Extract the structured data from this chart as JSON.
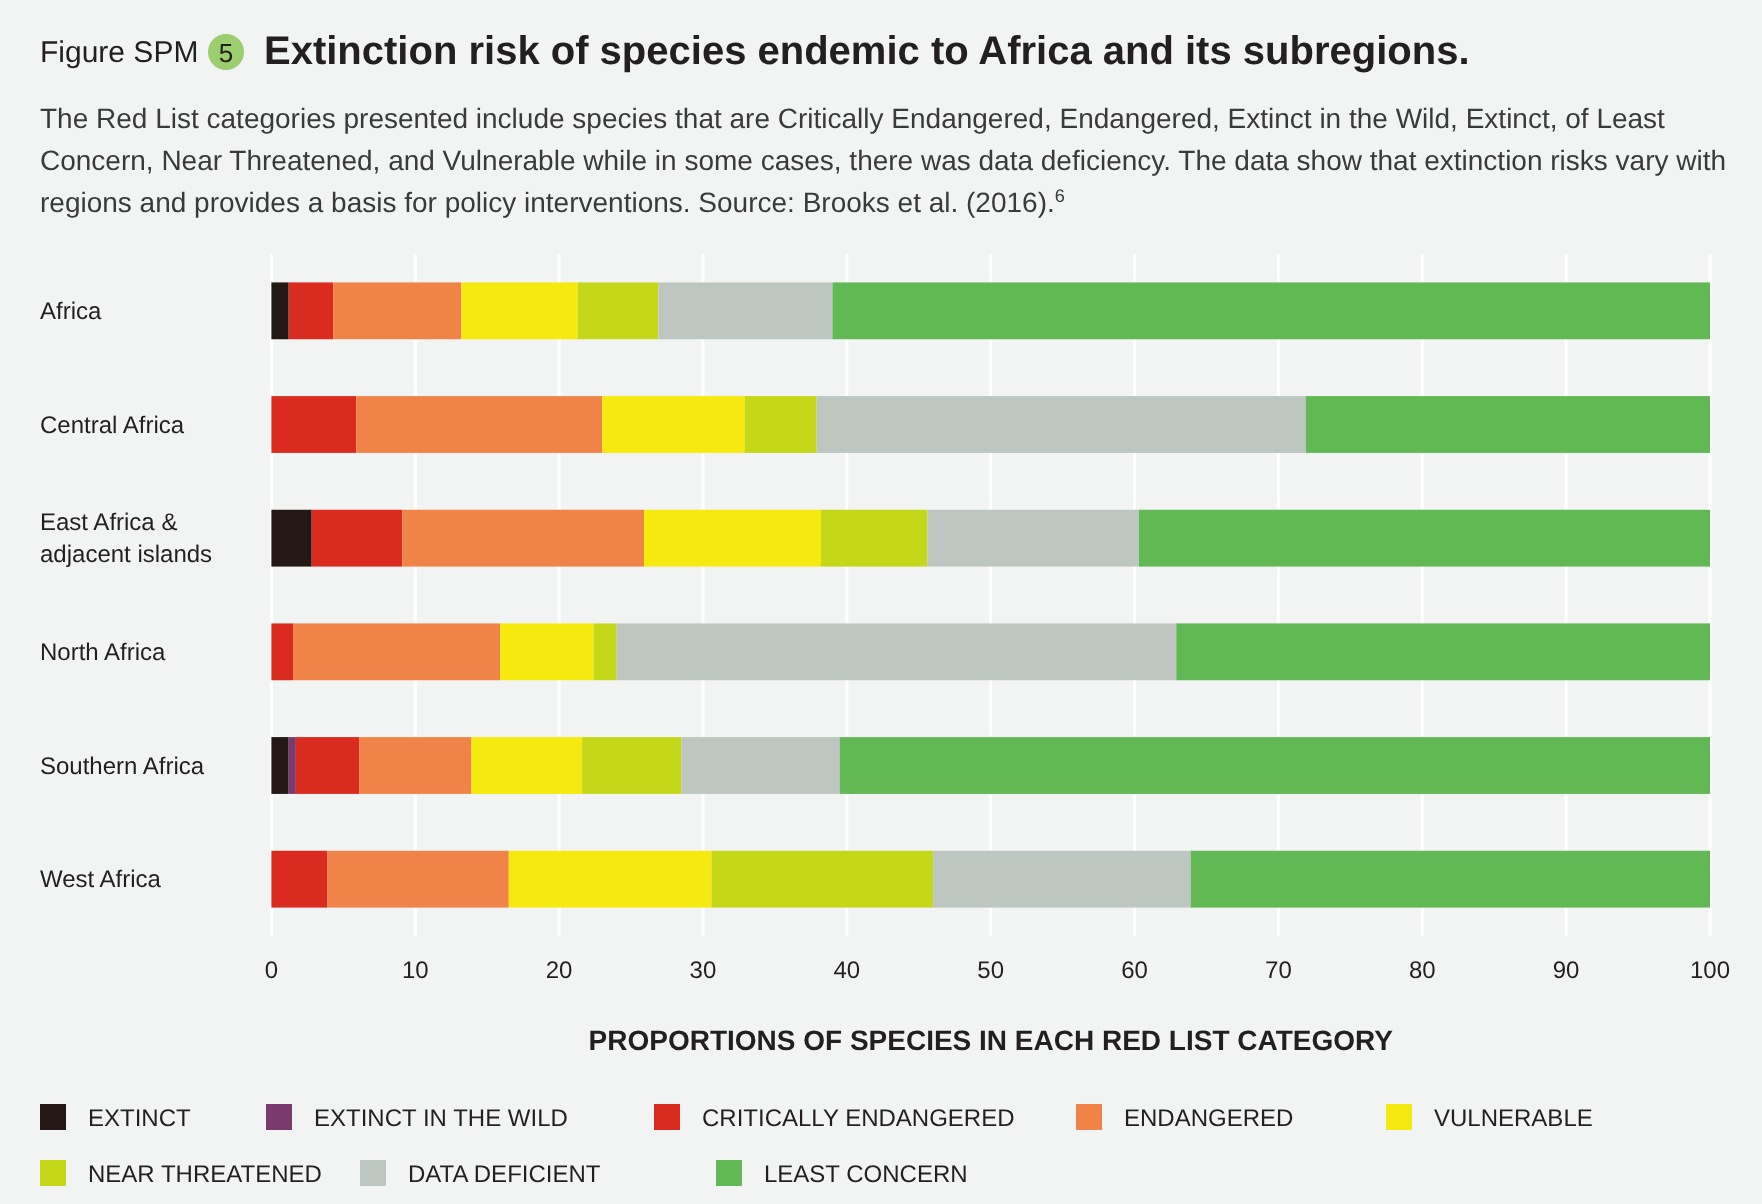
{
  "chart_data": {
    "type": "bar",
    "orientation": "horizontal",
    "stacked": true,
    "title": "Extinction risk of species endemic to Africa and its subregions.",
    "subtitle": "The Red List categories presented include species that are Critically Endangered, Endangered, Extinct in the Wild, Extinct, of Least Concern, Near Threatened, and Vulnerable while in some cases, there was data deficiency. The data show that extinction risks vary with regions and provides a basis for policy interventions. Source: Brooks et al. (2016).$^{6}$",
    "annotations": [
      "Figure SPM",
      "5"
    ],
    "xlabel": "PROPORTIONS OF SPECIES IN EACH RED LIST CATEGORY",
    "categories": [
      "Africa",
      "Central Africa",
      "East Africa & adjacent islands",
      "North Africa",
      "Southern Africa",
      "West Africa"
    ],
    "series": [
      {
        "name": "EXTINCT",
        "color": "#231816",
        "values": [
          1.2,
          0,
          2.8,
          0,
          1.2,
          0
        ]
      },
      {
        "name": "EXTINCT IN THE WILD",
        "color": "#7b3a6e",
        "values": [
          0,
          0,
          0,
          0,
          0.5,
          0
        ]
      },
      {
        "name": "CRITICALLY ENDANGERED",
        "color": "#d92b20",
        "values": [
          3.1,
          5.9,
          6.3,
          1.5,
          4.4,
          3.9
        ]
      },
      {
        "name": "ENDANGERED",
        "color": "#f08347",
        "values": [
          8.9,
          17.1,
          16.8,
          14.4,
          7.8,
          12.6
        ]
      },
      {
        "name": "VULNERABLE",
        "color": "#f5e90f",
        "values": [
          8.1,
          9.9,
          12.3,
          6.5,
          7.7,
          14.1
        ]
      },
      {
        "name": "NEAR THREATENED",
        "color": "#c4d718",
        "values": [
          5.6,
          5.0,
          7.4,
          1.6,
          6.9,
          15.4
        ]
      },
      {
        "name": "DATA DEFICIENT",
        "color": "#bec6c2",
        "values": [
          12.1,
          34.0,
          14.7,
          38.9,
          11.0,
          17.9
        ]
      },
      {
        "name": "LEAST CONCERN",
        "color": "#62b854",
        "values": [
          61.0,
          28.1,
          39.7,
          37.1,
          60.5,
          36.1
        ]
      }
    ],
    "xlim": [
      0,
      100
    ],
    "xticks": [
      0,
      10,
      20,
      30,
      40,
      50,
      60,
      70,
      80,
      90,
      100
    ],
    "grid": "x",
    "legend": "bottom"
  }
}
